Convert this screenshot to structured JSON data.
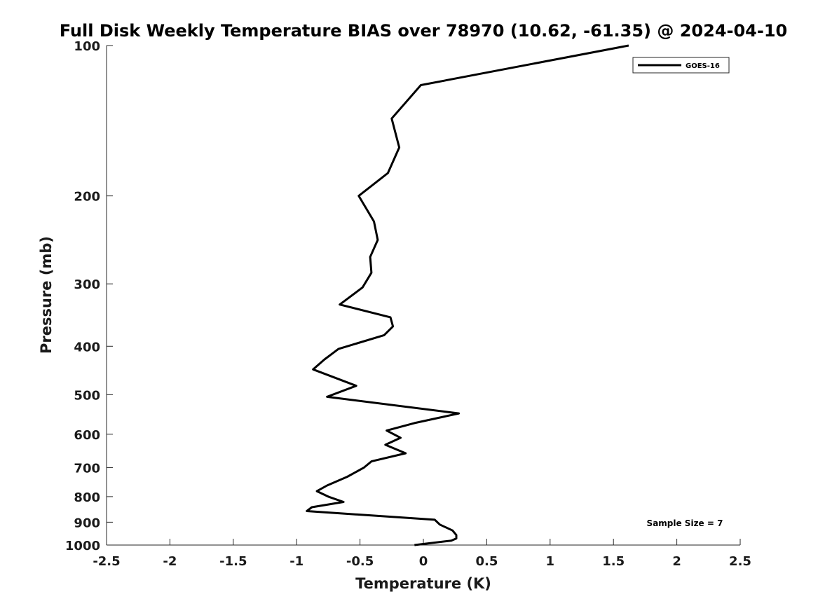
{
  "chart_data": {
    "type": "line",
    "title": "Full Disk Weekly Temperature BIAS over 78970 (10.62, -61.35) @ 2024-04-10",
    "xlabel": "Temperature (K)",
    "ylabel": "Pressure (mb)",
    "xlim": [
      -2.5,
      2.5
    ],
    "ylim": [
      100,
      1000
    ],
    "y_scale": "log",
    "y_reversed": true,
    "x_ticks": [
      "-2.5",
      "-2",
      "-1.5",
      "-1",
      "-0.5",
      "0",
      "0.5",
      "1",
      "1.5",
      "2",
      "2.5"
    ],
    "y_ticks": [
      "100",
      "200",
      "300",
      "400",
      "500",
      "600",
      "700",
      "800",
      "900",
      "1000"
    ],
    "legend_position": "top-right",
    "annotation": "Sample Size = 7",
    "series": [
      {
        "name": "GOES-16",
        "color": "#000000",
        "points": [
          {
            "x": 1.62,
            "y": 100
          },
          {
            "x": -0.02,
            "y": 120
          },
          {
            "x": -0.25,
            "y": 140
          },
          {
            "x": -0.19,
            "y": 160
          },
          {
            "x": -0.28,
            "y": 180
          },
          {
            "x": -0.51,
            "y": 200
          },
          {
            "x": -0.39,
            "y": 225
          },
          {
            "x": -0.36,
            "y": 245
          },
          {
            "x": -0.42,
            "y": 265
          },
          {
            "x": -0.41,
            "y": 285
          },
          {
            "x": -0.48,
            "y": 305
          },
          {
            "x": -0.66,
            "y": 330
          },
          {
            "x": -0.26,
            "y": 350
          },
          {
            "x": -0.24,
            "y": 365
          },
          {
            "x": -0.31,
            "y": 380
          },
          {
            "x": -0.67,
            "y": 405
          },
          {
            "x": -0.78,
            "y": 425
          },
          {
            "x": -0.87,
            "y": 445
          },
          {
            "x": -0.53,
            "y": 480
          },
          {
            "x": -0.76,
            "y": 505
          },
          {
            "x": 0.28,
            "y": 545
          },
          {
            "x": -0.07,
            "y": 570
          },
          {
            "x": -0.29,
            "y": 590
          },
          {
            "x": -0.18,
            "y": 610
          },
          {
            "x": -0.3,
            "y": 630
          },
          {
            "x": -0.14,
            "y": 655
          },
          {
            "x": -0.41,
            "y": 680
          },
          {
            "x": -0.47,
            "y": 700
          },
          {
            "x": -0.6,
            "y": 730
          },
          {
            "x": -0.76,
            "y": 760
          },
          {
            "x": -0.84,
            "y": 780
          },
          {
            "x": -0.75,
            "y": 800
          },
          {
            "x": -0.63,
            "y": 820
          },
          {
            "x": -0.88,
            "y": 840
          },
          {
            "x": -0.92,
            "y": 855
          },
          {
            "x": 0.09,
            "y": 890
          },
          {
            "x": 0.13,
            "y": 910
          },
          {
            "x": 0.23,
            "y": 935
          },
          {
            "x": 0.26,
            "y": 955
          },
          {
            "x": 0.26,
            "y": 970
          },
          {
            "x": 0.22,
            "y": 980
          },
          {
            "x": -0.07,
            "y": 1000
          }
        ]
      }
    ]
  }
}
